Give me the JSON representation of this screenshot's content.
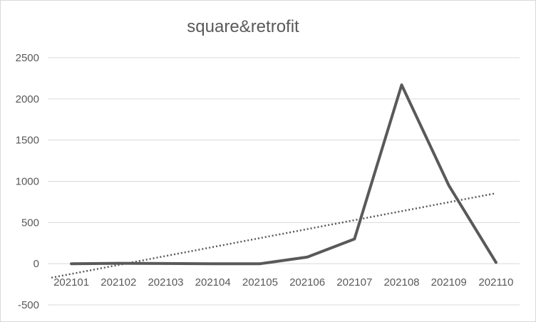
{
  "chart_data": {
    "type": "line",
    "title": "square&retrofit",
    "xlabel": "",
    "ylabel": "",
    "categories": [
      "202101",
      "202102",
      "202103",
      "202104",
      "202105",
      "202106",
      "202107",
      "202108",
      "202109",
      "202110"
    ],
    "series": [
      {
        "values": [
          0,
          5,
          2,
          0,
          0,
          80,
          300,
          2170,
          950,
          15
        ]
      }
    ],
    "trendline": {
      "type": "linear",
      "style": "dotted",
      "start": -170,
      "end": 855
    },
    "ylim": [
      -500,
      2500
    ],
    "yticks": [
      "-500",
      "0",
      "500",
      "1000",
      "1500",
      "2000",
      "2500"
    ],
    "grid": true,
    "legend": "none",
    "colors": {
      "series": "#595959",
      "trendline": "#595959",
      "grid": "#d9d9d9",
      "text": "#595959"
    }
  }
}
